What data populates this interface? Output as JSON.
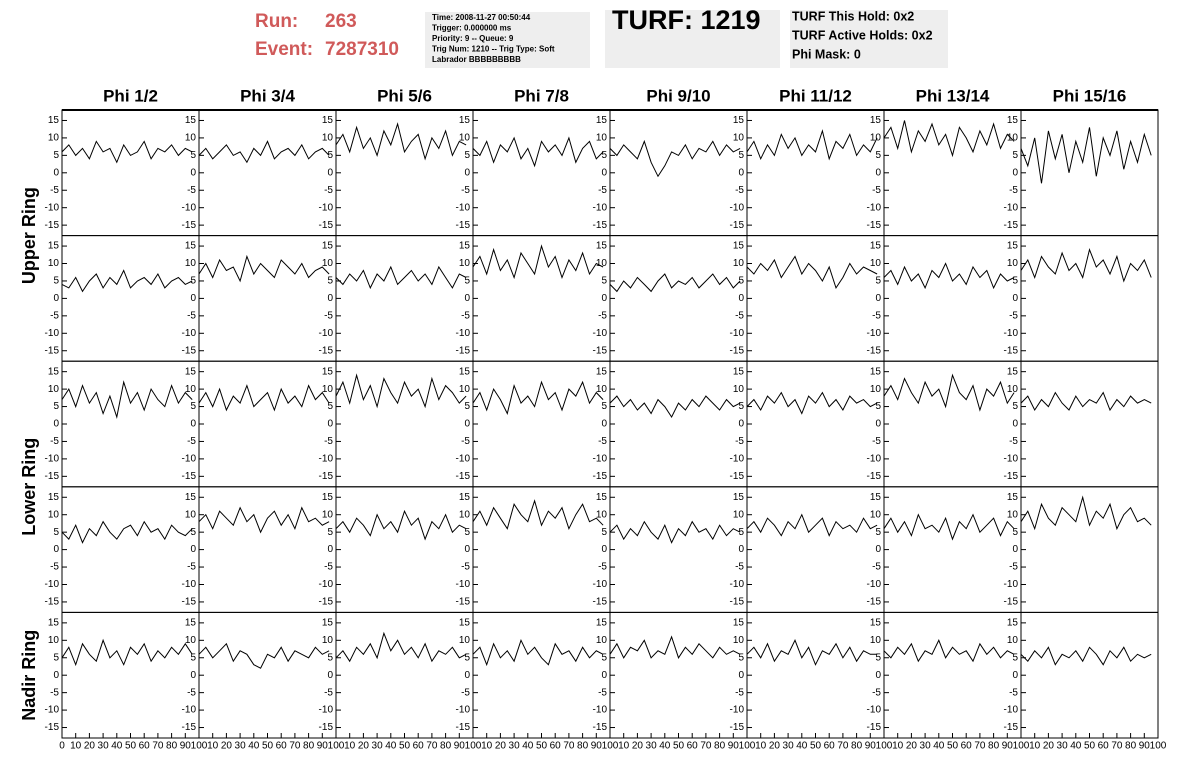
{
  "header": {
    "run_label": "Run:",
    "run": "263",
    "event_label": "Event:",
    "event": "7287310",
    "info": [
      "Time: 2008-11-27 00:50:44",
      "Trigger: 0.000000 ms",
      "Priority: 9 -- Queue: 9",
      "Trig Num: 1210 -- Trig Type: Soft",
      "Labrador BBBBBBBBB"
    ],
    "turf": "TURF: 1219",
    "turf_info": [
      "TURF This Hold: 0x2",
      "TURF Active Holds: 0x2",
      "Phi Mask: 0"
    ]
  },
  "columns": [
    "Phi 1/2",
    "Phi 3/4",
    "Phi 5/6",
    "Phi 7/8",
    "Phi 9/10",
    "Phi 11/12",
    "Phi 13/14",
    "Phi 15/16"
  ],
  "ring_labels": [
    "Upper Ring",
    "Lower Ring",
    "Nadir Ring"
  ],
  "xlim": [
    0,
    100
  ],
  "ylim": [
    -18,
    18
  ],
  "xticks": [
    0,
    10,
    20,
    30,
    40,
    50,
    60,
    70,
    80,
    90,
    100
  ],
  "yticks": [
    -15,
    -10,
    -5,
    0,
    5,
    10,
    15
  ],
  "x": [
    0,
    5,
    10,
    15,
    20,
    25,
    30,
    35,
    40,
    45,
    50,
    55,
    60,
    65,
    70,
    75,
    80,
    85,
    90,
    95
  ],
  "panels": [
    [
      [
        6,
        8,
        5,
        7,
        4,
        9,
        6,
        7,
        3,
        8,
        5,
        6,
        9,
        4,
        7,
        6,
        8,
        5,
        7,
        6
      ],
      [
        5,
        7,
        4,
        6,
        8,
        5,
        6,
        3,
        7,
        5,
        9,
        4,
        6,
        7,
        5,
        8,
        4,
        6,
        7,
        5
      ],
      [
        8,
        11,
        6,
        13,
        7,
        10,
        5,
        12,
        8,
        14,
        6,
        9,
        11,
        4,
        10,
        7,
        12,
        5,
        9,
        8
      ],
      [
        7,
        5,
        9,
        3,
        8,
        6,
        10,
        4,
        7,
        2,
        9,
        6,
        8,
        5,
        10,
        3,
        7,
        9,
        4,
        6
      ],
      [
        7,
        5,
        8,
        6,
        4,
        9,
        3,
        -1,
        2,
        6,
        5,
        8,
        4,
        7,
        6,
        9,
        5,
        8,
        6,
        7
      ],
      [
        6,
        9,
        4,
        8,
        5,
        11,
        7,
        10,
        5,
        8,
        6,
        12,
        4,
        9,
        7,
        11,
        5,
        8,
        6,
        10
      ],
      [
        10,
        13,
        7,
        15,
        6,
        12,
        9,
        14,
        8,
        11,
        5,
        13,
        10,
        6,
        12,
        8,
        14,
        7,
        11,
        9
      ],
      [
        7,
        2,
        10,
        -3,
        12,
        4,
        11,
        0,
        9,
        3,
        13,
        -1,
        10,
        5,
        12,
        1,
        9,
        3,
        11,
        5
      ]
    ],
    [
      [
        4,
        3,
        6,
        2,
        5,
        7,
        3,
        6,
        4,
        8,
        3,
        5,
        6,
        4,
        7,
        3,
        5,
        6,
        4,
        5
      ],
      [
        7,
        10,
        6,
        11,
        8,
        9,
        5,
        12,
        7,
        10,
        8,
        6,
        11,
        9,
        7,
        10,
        6,
        8,
        9,
        7
      ],
      [
        6,
        4,
        7,
        5,
        8,
        3,
        7,
        5,
        9,
        4,
        6,
        8,
        5,
        7,
        4,
        9,
        6,
        3,
        7,
        6
      ],
      [
        9,
        12,
        7,
        14,
        8,
        11,
        6,
        13,
        10,
        7,
        15,
        9,
        12,
        6,
        11,
        8,
        13,
        7,
        10,
        9
      ],
      [
        4,
        2,
        5,
        3,
        6,
        4,
        2,
        5,
        7,
        3,
        5,
        4,
        6,
        3,
        5,
        7,
        4,
        6,
        3,
        5
      ],
      [
        9,
        7,
        10,
        8,
        11,
        6,
        9,
        12,
        7,
        10,
        8,
        5,
        9,
        3,
        6,
        10,
        7,
        9,
        8,
        7
      ],
      [
        6,
        8,
        4,
        9,
        5,
        7,
        3,
        8,
        6,
        10,
        5,
        7,
        4,
        9,
        6,
        8,
        3,
        7,
        5,
        6
      ],
      [
        8,
        11,
        6,
        12,
        9,
        7,
        13,
        8,
        10,
        6,
        14,
        9,
        11,
        7,
        12,
        5,
        10,
        8,
        11,
        6
      ]
    ],
    [
      [
        7,
        10,
        5,
        11,
        6,
        9,
        3,
        8,
        2,
        12,
        6,
        9,
        4,
        10,
        7,
        5,
        11,
        6,
        9,
        7
      ],
      [
        6,
        9,
        5,
        10,
        4,
        8,
        6,
        11,
        5,
        7,
        9,
        4,
        10,
        6,
        8,
        5,
        11,
        7,
        9,
        6
      ],
      [
        8,
        12,
        6,
        14,
        7,
        11,
        5,
        13,
        9,
        6,
        12,
        8,
        10,
        5,
        13,
        7,
        11,
        9,
        6,
        8
      ],
      [
        6,
        9,
        4,
        10,
        7,
        3,
        11,
        6,
        8,
        5,
        12,
        7,
        9,
        4,
        10,
        8,
        12,
        6,
        9,
        7
      ],
      [
        6,
        8,
        5,
        7,
        4,
        6,
        3,
        7,
        5,
        2,
        6,
        4,
        7,
        5,
        8,
        6,
        4,
        7,
        5,
        6
      ],
      [
        5,
        7,
        4,
        8,
        6,
        9,
        5,
        7,
        3,
        8,
        6,
        9,
        5,
        7,
        4,
        8,
        6,
        7,
        5,
        6
      ],
      [
        8,
        11,
        7,
        13,
        9,
        6,
        12,
        8,
        10,
        5,
        14,
        9,
        7,
        11,
        4,
        10,
        8,
        12,
        6,
        9
      ],
      [
        6,
        8,
        4,
        7,
        5,
        9,
        6,
        4,
        8,
        5,
        7,
        6,
        9,
        4,
        7,
        5,
        8,
        6,
        7,
        6
      ]
    ],
    [
      [
        5,
        3,
        7,
        2,
        6,
        4,
        8,
        5,
        3,
        6,
        7,
        4,
        8,
        5,
        6,
        3,
        7,
        5,
        4,
        6
      ],
      [
        8,
        10,
        6,
        11,
        9,
        7,
        12,
        8,
        10,
        5,
        9,
        11,
        7,
        10,
        6,
        12,
        8,
        9,
        7,
        8
      ],
      [
        6,
        8,
        5,
        9,
        7,
        4,
        10,
        6,
        8,
        5,
        11,
        7,
        9,
        3,
        8,
        6,
        10,
        5,
        7,
        6
      ],
      [
        8,
        11,
        7,
        12,
        9,
        6,
        13,
        10,
        8,
        14,
        7,
        11,
        9,
        12,
        6,
        10,
        13,
        8,
        9,
        7
      ],
      [
        5,
        7,
        3,
        6,
        4,
        8,
        5,
        3,
        7,
        2,
        6,
        4,
        8,
        5,
        6,
        3,
        7,
        4,
        6,
        5
      ],
      [
        6,
        8,
        5,
        9,
        7,
        4,
        8,
        6,
        10,
        5,
        7,
        9,
        4,
        8,
        6,
        7,
        5,
        9,
        6,
        7
      ],
      [
        6,
        9,
        5,
        8,
        4,
        10,
        6,
        7,
        5,
        9,
        3,
        8,
        6,
        10,
        5,
        7,
        9,
        4,
        8,
        6
      ],
      [
        8,
        11,
        6,
        13,
        9,
        7,
        12,
        10,
        8,
        15,
        7,
        11,
        9,
        13,
        6,
        10,
        12,
        8,
        9,
        7
      ]
    ],
    [
      [
        5,
        8,
        3,
        9,
        6,
        4,
        10,
        5,
        7,
        3,
        8,
        6,
        9,
        4,
        7,
        5,
        8,
        6,
        9,
        6
      ],
      [
        6,
        8,
        5,
        7,
        9,
        4,
        7,
        6,
        3,
        2,
        6,
        5,
        8,
        4,
        7,
        6,
        5,
        8,
        6,
        7
      ],
      [
        5,
        7,
        4,
        8,
        6,
        9,
        5,
        12,
        7,
        10,
        6,
        8,
        5,
        9,
        4,
        7,
        6,
        8,
        5,
        6
      ],
      [
        6,
        8,
        3,
        9,
        5,
        7,
        4,
        10,
        6,
        8,
        5,
        3,
        9,
        6,
        7,
        4,
        8,
        5,
        7,
        6
      ],
      [
        6,
        9,
        5,
        8,
        7,
        10,
        5,
        7,
        6,
        11,
        5,
        8,
        6,
        9,
        7,
        5,
        8,
        6,
        7,
        6
      ],
      [
        6,
        8,
        5,
        9,
        4,
        7,
        6,
        10,
        5,
        8,
        3,
        7,
        6,
        9,
        5,
        8,
        4,
        7,
        6,
        6
      ],
      [
        7,
        5,
        8,
        6,
        9,
        4,
        7,
        6,
        10,
        5,
        8,
        6,
        7,
        4,
        9,
        6,
        8,
        5,
        7,
        6
      ],
      [
        6,
        4,
        7,
        5,
        8,
        3,
        6,
        5,
        7,
        4,
        8,
        6,
        3,
        7,
        5,
        8,
        4,
        6,
        5,
        6
      ]
    ]
  ]
}
